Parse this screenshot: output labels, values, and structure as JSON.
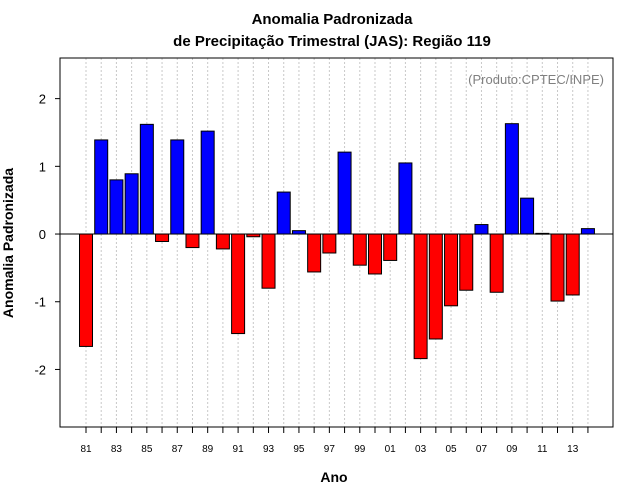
{
  "chart_data": {
    "type": "bar",
    "title": "Anomalia Padronizada",
    "subtitle": "de Precipitação Trimestral (JAS): Região 119",
    "xlabel": "Ano",
    "ylabel": "Anomalia Padronizada",
    "credit": "(Produto:CPTEC/INPE)",
    "ylim": [
      -2.85,
      2.6
    ],
    "yticks": [
      -2,
      -1,
      0,
      1,
      2
    ],
    "grid": "vertical dotted",
    "colors": {
      "positive": "#0000ff",
      "negative": "#ff0000"
    },
    "categories": [
      "1981",
      "1982",
      "1983",
      "1984",
      "1985",
      "1986",
      "1987",
      "1988",
      "1989",
      "1990",
      "1991",
      "1992",
      "1993",
      "1994",
      "1995",
      "1996",
      "1997",
      "1998",
      "1999",
      "2000",
      "2001",
      "2002",
      "2003",
      "2004",
      "2005",
      "2006",
      "2007",
      "2008",
      "2009",
      "2010",
      "2011",
      "2012",
      "2013",
      "2014"
    ],
    "tick_labels": [
      "81",
      "83",
      "85",
      "87",
      "89",
      "91",
      "93",
      "95",
      "97",
      "99",
      "01",
      "03",
      "05",
      "07",
      "09",
      "11",
      "13"
    ],
    "values": [
      -1.66,
      1.39,
      0.8,
      0.89,
      1.62,
      -0.11,
      1.39,
      -0.2,
      1.52,
      -0.22,
      -1.47,
      -0.04,
      -0.8,
      0.62,
      0.05,
      -0.56,
      -0.28,
      1.21,
      -0.46,
      -0.59,
      -0.39,
      1.05,
      -1.84,
      -1.55,
      -1.06,
      -0.83,
      0.14,
      -0.86,
      1.63,
      0.53,
      0.01,
      -0.99,
      -0.9,
      0.08
    ]
  }
}
